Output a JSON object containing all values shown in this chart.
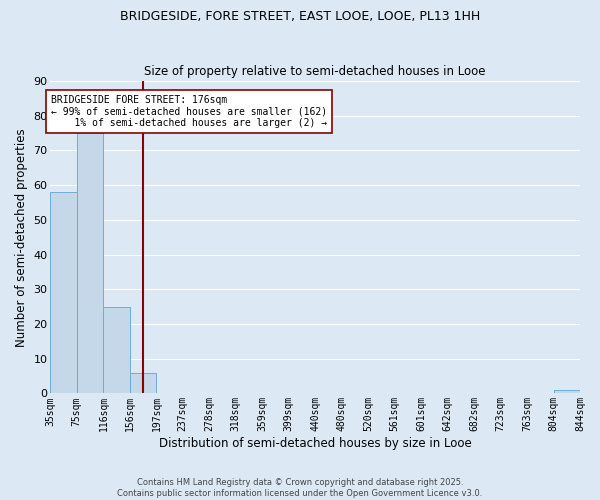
{
  "title": "BRIDGESIDE, FORE STREET, EAST LOOE, LOOE, PL13 1HH",
  "subtitle": "Size of property relative to semi-detached houses in Looe",
  "xlabel": "Distribution of semi-detached houses by size in Looe",
  "ylabel": "Number of semi-detached properties",
  "bin_edges": [
    35,
    75,
    116,
    156,
    197,
    237,
    278,
    318,
    359,
    399,
    440,
    480,
    520,
    561,
    601,
    642,
    682,
    723,
    763,
    804,
    844
  ],
  "counts": [
    58,
    75,
    25,
    6,
    0,
    0,
    0,
    0,
    0,
    0,
    0,
    0,
    0,
    0,
    0,
    0,
    0,
    0,
    0,
    1
  ],
  "bar_color": "#c5d8ea",
  "bar_edge_color": "#6aaed6",
  "property_size": 176,
  "red_line_color": "#8b0000",
  "annotation_line1": "BRIDGESIDE FORE STREET: 176sqm",
  "annotation_line2": "← 99% of semi-detached houses are smaller (162)",
  "annotation_line3": "    1% of semi-detached houses are larger (2) →",
  "annotation_box_color": "white",
  "annotation_box_edge_color": "#8b0000",
  "ylim": [
    0,
    90
  ],
  "yticks": [
    0,
    10,
    20,
    30,
    40,
    50,
    60,
    70,
    80,
    90
  ],
  "tick_labels": [
    "35sqm",
    "75sqm",
    "116sqm",
    "156sqm",
    "197sqm",
    "237sqm",
    "278sqm",
    "318sqm",
    "359sqm",
    "399sqm",
    "440sqm",
    "480sqm",
    "520sqm",
    "561sqm",
    "601sqm",
    "642sqm",
    "682sqm",
    "723sqm",
    "763sqm",
    "804sqm",
    "844sqm"
  ],
  "grid_color": "#ffffff",
  "background_color": "#dce9f5",
  "footer_line1": "Contains HM Land Registry data © Crown copyright and database right 2025.",
  "footer_line2": "Contains public sector information licensed under the Open Government Licence v3.0."
}
